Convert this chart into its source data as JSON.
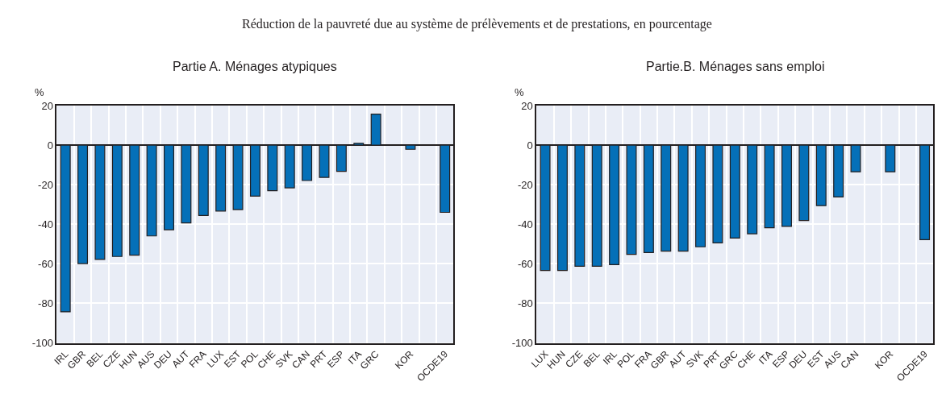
{
  "chart_data": [
    {
      "type": "bar",
      "title": "Partie A. Ménages atypiques",
      "ylabel": "%",
      "annotations": [
        "Réduction de la pauvreté due au système de prélèvements et de prestations, en pourcentage"
      ],
      "categories": [
        "IRL",
        "GBR",
        "BEL",
        "CZE",
        "HUN",
        "AUS",
        "DEU",
        "AUT",
        "FRA",
        "LUX",
        "EST",
        "POL",
        "CHE",
        "SVK",
        "CAN",
        "PRT",
        "ESP",
        "ITA",
        "GRC",
        null,
        "KOR",
        null,
        "OCDE19"
      ],
      "values": [
        -84.3,
        -59.9,
        -57.8,
        -56.3,
        -55.6,
        -45.9,
        -42.8,
        -39.3,
        -35.6,
        -33.3,
        -32.6,
        -25.8,
        -23,
        -21.6,
        -17.9,
        -16.3,
        -13.3,
        0.9,
        15.7,
        null,
        -2.1,
        null,
        -34
      ],
      "color": "#0570b8",
      "ylim": [
        -100,
        20
      ],
      "yticks": [
        -100,
        -80,
        -60,
        -40,
        -20,
        0,
        20
      ],
      "grid": true
    },
    {
      "type": "bar",
      "title": "Partie.B. Ménages sans emploi",
      "ylabel": "%",
      "categories": [
        "LUX",
        "HUN",
        "CZE",
        "BEL",
        "IRL",
        "POL",
        "FRA",
        "GBR",
        "AUT",
        "SVK",
        "PRT",
        "GRC",
        "CHE",
        "ITA",
        "ESP",
        "DEU",
        "EST",
        "AUS",
        "CAN",
        null,
        "KOR",
        null,
        "OCDE19"
      ],
      "values": [
        -63.4,
        -63.4,
        -61.2,
        -61.2,
        -60.4,
        -55.2,
        -54.3,
        -53.6,
        -53.6,
        -51.4,
        -49.4,
        -47,
        -44.8,
        -41.8,
        -41.1,
        -38.1,
        -30.6,
        -26.2,
        -13.5,
        null,
        -13.5,
        null,
        -47.8
      ],
      "color": "#0570b8",
      "ylim": [
        -100,
        20
      ],
      "yticks": [
        -100,
        -80,
        -60,
        -40,
        -20,
        0,
        20
      ],
      "grid": true
    }
  ]
}
